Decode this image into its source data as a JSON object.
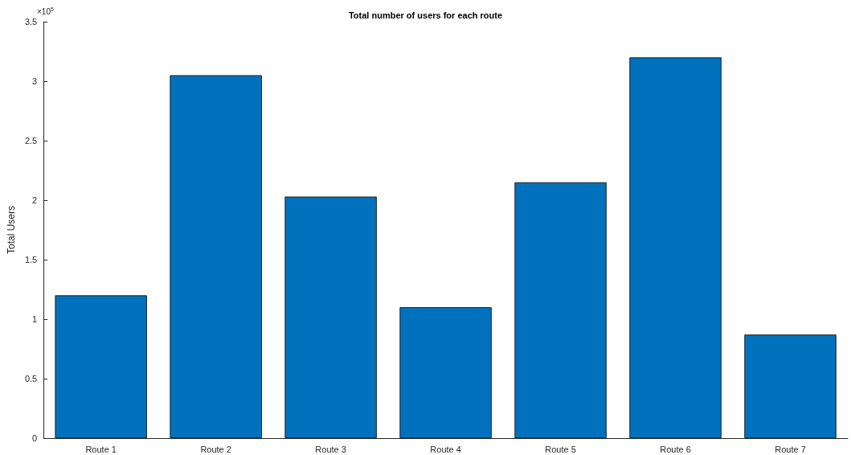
{
  "chart_data": {
    "type": "bar",
    "title": "Total number of users for each route",
    "ylabel": "Total Users",
    "categories": [
      "Route 1",
      "Route 2",
      "Route 3",
      "Route 4",
      "Route 5",
      "Route 6",
      "Route 7"
    ],
    "values": [
      1.2,
      3.05,
      2.03,
      1.1,
      2.15,
      3.2,
      0.87
    ],
    "color": "#0072bd",
    "ylim": [
      0,
      3.5
    ],
    "yticks": [
      0,
      0.5,
      1,
      1.5,
      2,
      2.5,
      3,
      3.5
    ],
    "annotations": [
      "×10$^{5}$"
    ],
    "grid": false
  }
}
